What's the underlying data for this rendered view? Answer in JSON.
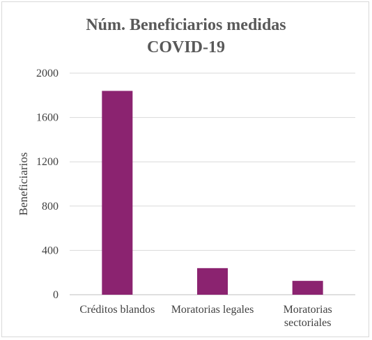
{
  "chart_data": {
    "type": "bar",
    "title_lines": [
      "Núm. Beneficiarios medidas",
      "COVID-19"
    ],
    "ylabel": "Beneficiarios",
    "xlabel": "",
    "categories": [
      [
        "Créditos blandos"
      ],
      [
        "Moratorias legales"
      ],
      [
        "Moratorias",
        "sectoriales"
      ]
    ],
    "values": [
      1840,
      240,
      125
    ],
    "ylim": [
      0,
      2000
    ],
    "yticks": [
      0,
      400,
      800,
      1200,
      1600,
      2000
    ],
    "bar_color": "#8B2370",
    "grid": true,
    "legend": "none"
  }
}
